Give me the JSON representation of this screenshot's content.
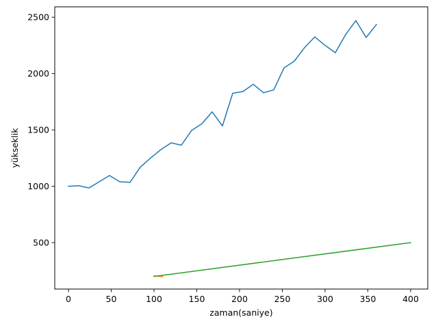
{
  "chart_data": {
    "type": "line",
    "title": "",
    "xlabel": "zaman(saniye)",
    "ylabel": "yükseklik",
    "xlim": [
      -16,
      420
    ],
    "ylim": [
      88,
      2592
    ],
    "xticks": [
      0,
      50,
      100,
      150,
      200,
      250,
      300,
      350,
      400
    ],
    "yticks": [
      500,
      1000,
      1500,
      2000,
      2500
    ],
    "grid": false,
    "series": [
      {
        "color": "#1f77b4",
        "x": [
          0,
          12,
          24,
          36,
          48,
          60,
          72,
          84,
          96,
          108,
          120,
          132,
          144,
          156,
          168,
          180,
          192,
          204,
          216,
          228,
          240,
          252,
          264,
          276,
          288,
          300,
          312,
          324,
          336,
          348,
          360
        ],
        "y": [
          1000,
          1005,
          985,
          1040,
          1095,
          1040,
          1035,
          1170,
          1250,
          1325,
          1385,
          1365,
          1495,
          1555,
          1660,
          1535,
          1825,
          1840,
          1905,
          1830,
          1855,
          2050,
          2110,
          2230,
          2325,
          2250,
          2185,
          2345,
          2470,
          2320,
          2435
        ]
      },
      {
        "color": "#ff7f0e",
        "x": [
          100,
          110
        ],
        "y": [
          205,
          198
        ]
      },
      {
        "color": "#2ca02c",
        "x": [
          100,
          400
        ],
        "y": [
          200,
          500
        ]
      }
    ]
  }
}
